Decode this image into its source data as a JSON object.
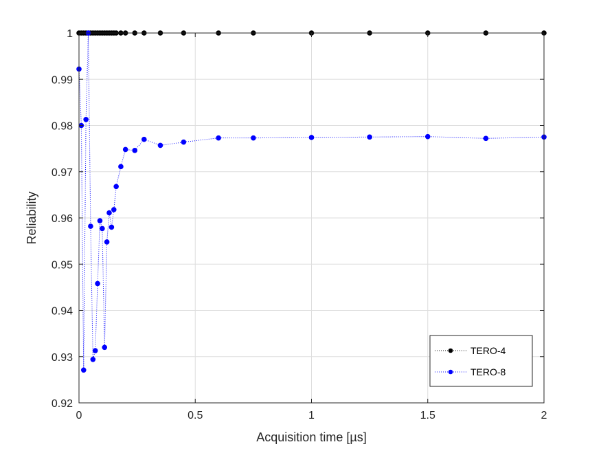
{
  "chart_data": {
    "type": "line",
    "xlabel": "Acquisition time [µs]",
    "ylabel": "Reliability",
    "xlim": [
      0,
      2
    ],
    "ylim": [
      0.92,
      1.0
    ],
    "xticks": [
      0,
      0.5,
      1,
      1.5,
      2
    ],
    "xtick_labels": [
      "0",
      "0.5",
      "1",
      "1.5",
      "2"
    ],
    "yticks": [
      0.92,
      0.93,
      0.94,
      0.95,
      0.96,
      0.97,
      0.98,
      0.99,
      1.0
    ],
    "ytick_labels": [
      "0.92",
      "0.93",
      "0.94",
      "0.95",
      "0.96",
      "0.97",
      "0.98",
      "0.99",
      "1"
    ],
    "grid": true,
    "legend_position": "bottom-right",
    "series": [
      {
        "name": "TERO-4",
        "color": "#000000",
        "line_style": "dotted",
        "marker": "circle",
        "x": [
          0.0,
          0.01,
          0.02,
          0.03,
          0.04,
          0.05,
          0.06,
          0.07,
          0.08,
          0.09,
          0.1,
          0.11,
          0.12,
          0.13,
          0.14,
          0.15,
          0.16,
          0.18,
          0.2,
          0.24,
          0.28,
          0.35,
          0.45,
          0.6,
          0.75,
          1.0,
          1.25,
          1.5,
          1.75,
          2.0
        ],
        "y": [
          1.0,
          1.0,
          1.0,
          1.0,
          1.0,
          1.0,
          1.0,
          1.0,
          1.0,
          1.0,
          1.0,
          1.0,
          1.0,
          1.0,
          1.0,
          1.0,
          1.0,
          1.0,
          1.0,
          1.0,
          1.0,
          1.0,
          1.0,
          1.0,
          1.0,
          1.0,
          1.0,
          1.0,
          1.0,
          1.0
        ]
      },
      {
        "name": "TERO-8",
        "color": "#0000ff",
        "line_style": "dotted",
        "marker": "circle",
        "x": [
          0.0,
          0.01,
          0.02,
          0.03,
          0.04,
          0.05,
          0.06,
          0.07,
          0.08,
          0.09,
          0.1,
          0.11,
          0.12,
          0.13,
          0.14,
          0.15,
          0.16,
          0.18,
          0.2,
          0.24,
          0.28,
          0.35,
          0.45,
          0.6,
          0.75,
          1.0,
          1.25,
          1.5,
          1.75,
          2.0
        ],
        "y": [
          0.9922,
          0.98,
          0.9271,
          0.9813,
          1.0,
          0.9582,
          0.9294,
          0.9313,
          0.9458,
          0.9594,
          0.9577,
          0.932,
          0.9548,
          0.9611,
          0.958,
          0.9618,
          0.9668,
          0.9711,
          0.9748,
          0.9746,
          0.977,
          0.9757,
          0.9764,
          0.9773,
          0.9773,
          0.9774,
          0.9775,
          0.9776,
          0.9772,
          0.9775
        ]
      }
    ]
  }
}
